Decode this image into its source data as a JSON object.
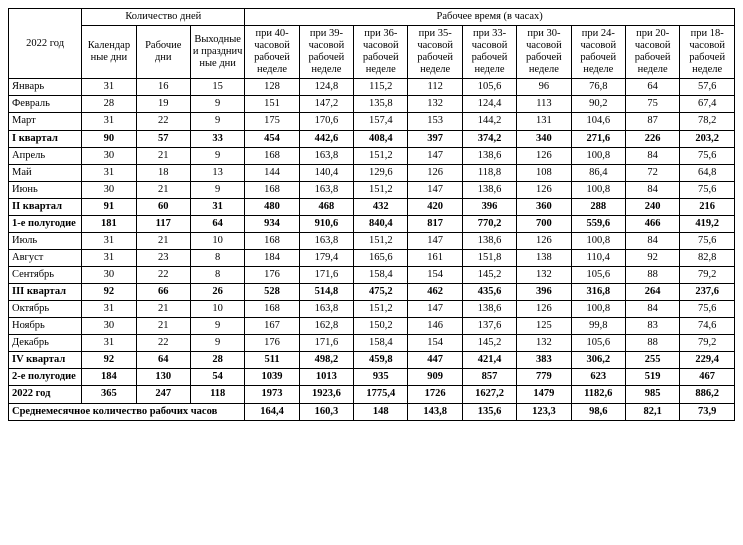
{
  "header": {
    "year": "2022 год",
    "days_count": "Количество дней",
    "work_time": "Рабочее время (в часах)",
    "calendar_days": "Календар\nные дни",
    "work_days": "Рабочие дни",
    "weekends": "Выходные и празднич\nные дни",
    "h40": "при 40-часовой рабочей неделе",
    "h39": "при 39-часовой рабочей неделе",
    "h36": "при 36-часовой рабочей неделе",
    "h35": "при 35-часовой рабочей неделе",
    "h33": "при 33-часовой рабочей неделе",
    "h30": "при 30-часовой рабочей неделе",
    "h24": "при 24-часовой рабочей неделе",
    "h20": "при 20-часовой рабочей неделе",
    "h18": "при 18-часовой рабочей неделе"
  },
  "footer_label": "Среднемесячное количество рабочих часов",
  "rows": [
    {
      "bold": false,
      "label": "Январь",
      "c": [
        "31",
        "16",
        "15",
        "128",
        "124,8",
        "115,2",
        "112",
        "105,6",
        "96",
        "76,8",
        "64",
        "57,6"
      ]
    },
    {
      "bold": false,
      "label": "Февраль",
      "c": [
        "28",
        "19",
        "9",
        "151",
        "147,2",
        "135,8",
        "132",
        "124,4",
        "113",
        "90,2",
        "75",
        "67,4"
      ]
    },
    {
      "bold": false,
      "label": "Март",
      "c": [
        "31",
        "22",
        "9",
        "175",
        "170,6",
        "157,4",
        "153",
        "144,2",
        "131",
        "104,6",
        "87",
        "78,2"
      ]
    },
    {
      "bold": true,
      "label": "I квартал",
      "c": [
        "90",
        "57",
        "33",
        "454",
        "442,6",
        "408,4",
        "397",
        "374,2",
        "340",
        "271,6",
        "226",
        "203,2"
      ]
    },
    {
      "bold": false,
      "label": "Апрель",
      "c": [
        "30",
        "21",
        "9",
        "168",
        "163,8",
        "151,2",
        "147",
        "138,6",
        "126",
        "100,8",
        "84",
        "75,6"
      ]
    },
    {
      "bold": false,
      "label": "Май",
      "c": [
        "31",
        "18",
        "13",
        "144",
        "140,4",
        "129,6",
        "126",
        "118,8",
        "108",
        "86,4",
        "72",
        "64,8"
      ]
    },
    {
      "bold": false,
      "label": "Июнь",
      "c": [
        "30",
        "21",
        "9",
        "168",
        "163,8",
        "151,2",
        "147",
        "138,6",
        "126",
        "100,8",
        "84",
        "75,6"
      ]
    },
    {
      "bold": true,
      "label": "II квартал",
      "c": [
        "91",
        "60",
        "31",
        "480",
        "468",
        "432",
        "420",
        "396",
        "360",
        "288",
        "240",
        "216"
      ]
    },
    {
      "bold": true,
      "label": "1-е полугодие",
      "c": [
        "181",
        "117",
        "64",
        "934",
        "910,6",
        "840,4",
        "817",
        "770,2",
        "700",
        "559,6",
        "466",
        "419,2"
      ]
    },
    {
      "bold": false,
      "label": "Июль",
      "c": [
        "31",
        "21",
        "10",
        "168",
        "163,8",
        "151,2",
        "147",
        "138,6",
        "126",
        "100,8",
        "84",
        "75,6"
      ]
    },
    {
      "bold": false,
      "label": "Август",
      "c": [
        "31",
        "23",
        "8",
        "184",
        "179,4",
        "165,6",
        "161",
        "151,8",
        "138",
        "110,4",
        "92",
        "82,8"
      ]
    },
    {
      "bold": false,
      "label": "Сентябрь",
      "c": [
        "30",
        "22",
        "8",
        "176",
        "171,6",
        "158,4",
        "154",
        "145,2",
        "132",
        "105,6",
        "88",
        "79,2"
      ]
    },
    {
      "bold": true,
      "label": "III квартал",
      "c": [
        "92",
        "66",
        "26",
        "528",
        "514,8",
        "475,2",
        "462",
        "435,6",
        "396",
        "316,8",
        "264",
        "237,6"
      ]
    },
    {
      "bold": false,
      "label": "Октябрь",
      "c": [
        "31",
        "21",
        "10",
        "168",
        "163,8",
        "151,2",
        "147",
        "138,6",
        "126",
        "100,8",
        "84",
        "75,6"
      ]
    },
    {
      "bold": false,
      "label": "Ноябрь",
      "c": [
        "30",
        "21",
        "9",
        "167",
        "162,8",
        "150,2",
        "146",
        "137,6",
        "125",
        "99,8",
        "83",
        "74,6"
      ]
    },
    {
      "bold": false,
      "label": "Декабрь",
      "c": [
        "31",
        "22",
        "9",
        "176",
        "171,6",
        "158,4",
        "154",
        "145,2",
        "132",
        "105,6",
        "88",
        "79,2"
      ]
    },
    {
      "bold": true,
      "label": "IV квартал",
      "c": [
        "92",
        "64",
        "28",
        "511",
        "498,2",
        "459,8",
        "447",
        "421,4",
        "383",
        "306,2",
        "255",
        "229,4"
      ]
    },
    {
      "bold": true,
      "label": "2-е полугодие",
      "c": [
        "184",
        "130",
        "54",
        "1039",
        "1013",
        "935",
        "909",
        "857",
        "779",
        "623",
        "519",
        "467"
      ]
    },
    {
      "bold": true,
      "label": "2022 год",
      "c": [
        "365",
        "247",
        "118",
        "1973",
        "1923,6",
        "1775,4",
        "1726",
        "1627,2",
        "1479",
        "1182,6",
        "985",
        "886,2"
      ]
    }
  ],
  "footer": [
    "164,4",
    "160,3",
    "148",
    "143,8",
    "135,6",
    "123,3",
    "98,6",
    "82,1",
    "73,9"
  ]
}
